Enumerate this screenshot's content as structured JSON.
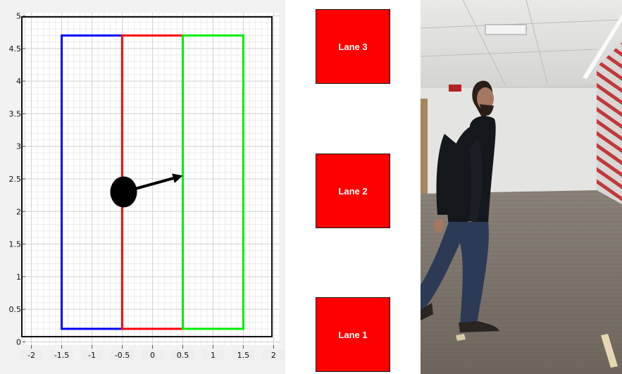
{
  "chart_data": {
    "type": "scatter",
    "xlim": [
      -2.1,
      2.1
    ],
    "ylim": [
      -0.05,
      5.05
    ],
    "x_ticks": [
      "-2",
      "-1.5",
      "-1",
      "-0.5",
      "0",
      "0.5",
      "1",
      "1.5",
      "2"
    ],
    "x_tick_values": [
      -2,
      -1.5,
      -1,
      -0.5,
      0,
      0.5,
      1,
      1.5,
      2
    ],
    "y_ticks": [
      "0",
      "0.5",
      "1",
      "1.5",
      "2",
      "2.5",
      "3",
      "3.5",
      "4",
      "4.5",
      "5"
    ],
    "y_tick_values": [
      0,
      0.5,
      1,
      1.5,
      2,
      2.5,
      3,
      3.5,
      4,
      4.5,
      5
    ],
    "grid": true,
    "lanes": [
      {
        "x0": -1.5,
        "x1": -0.5,
        "y0": 0.2,
        "y1": 4.7,
        "color": "#0000ff"
      },
      {
        "x0": -0.5,
        "x1": 0.5,
        "y0": 0.2,
        "y1": 4.7,
        "color": "#ff0000"
      },
      {
        "x0": 0.5,
        "x1": 1.5,
        "y0": 0.2,
        "y1": 4.7,
        "color": "#00ee00"
      }
    ],
    "person": {
      "x": -0.5,
      "y": 2.3
    },
    "heading": {
      "x": 0.5,
      "y": 2.55
    }
  },
  "lane_buttons": [
    {
      "label": "Lane 3"
    },
    {
      "label": "Lane 2"
    },
    {
      "label": "Lane 1"
    }
  ]
}
